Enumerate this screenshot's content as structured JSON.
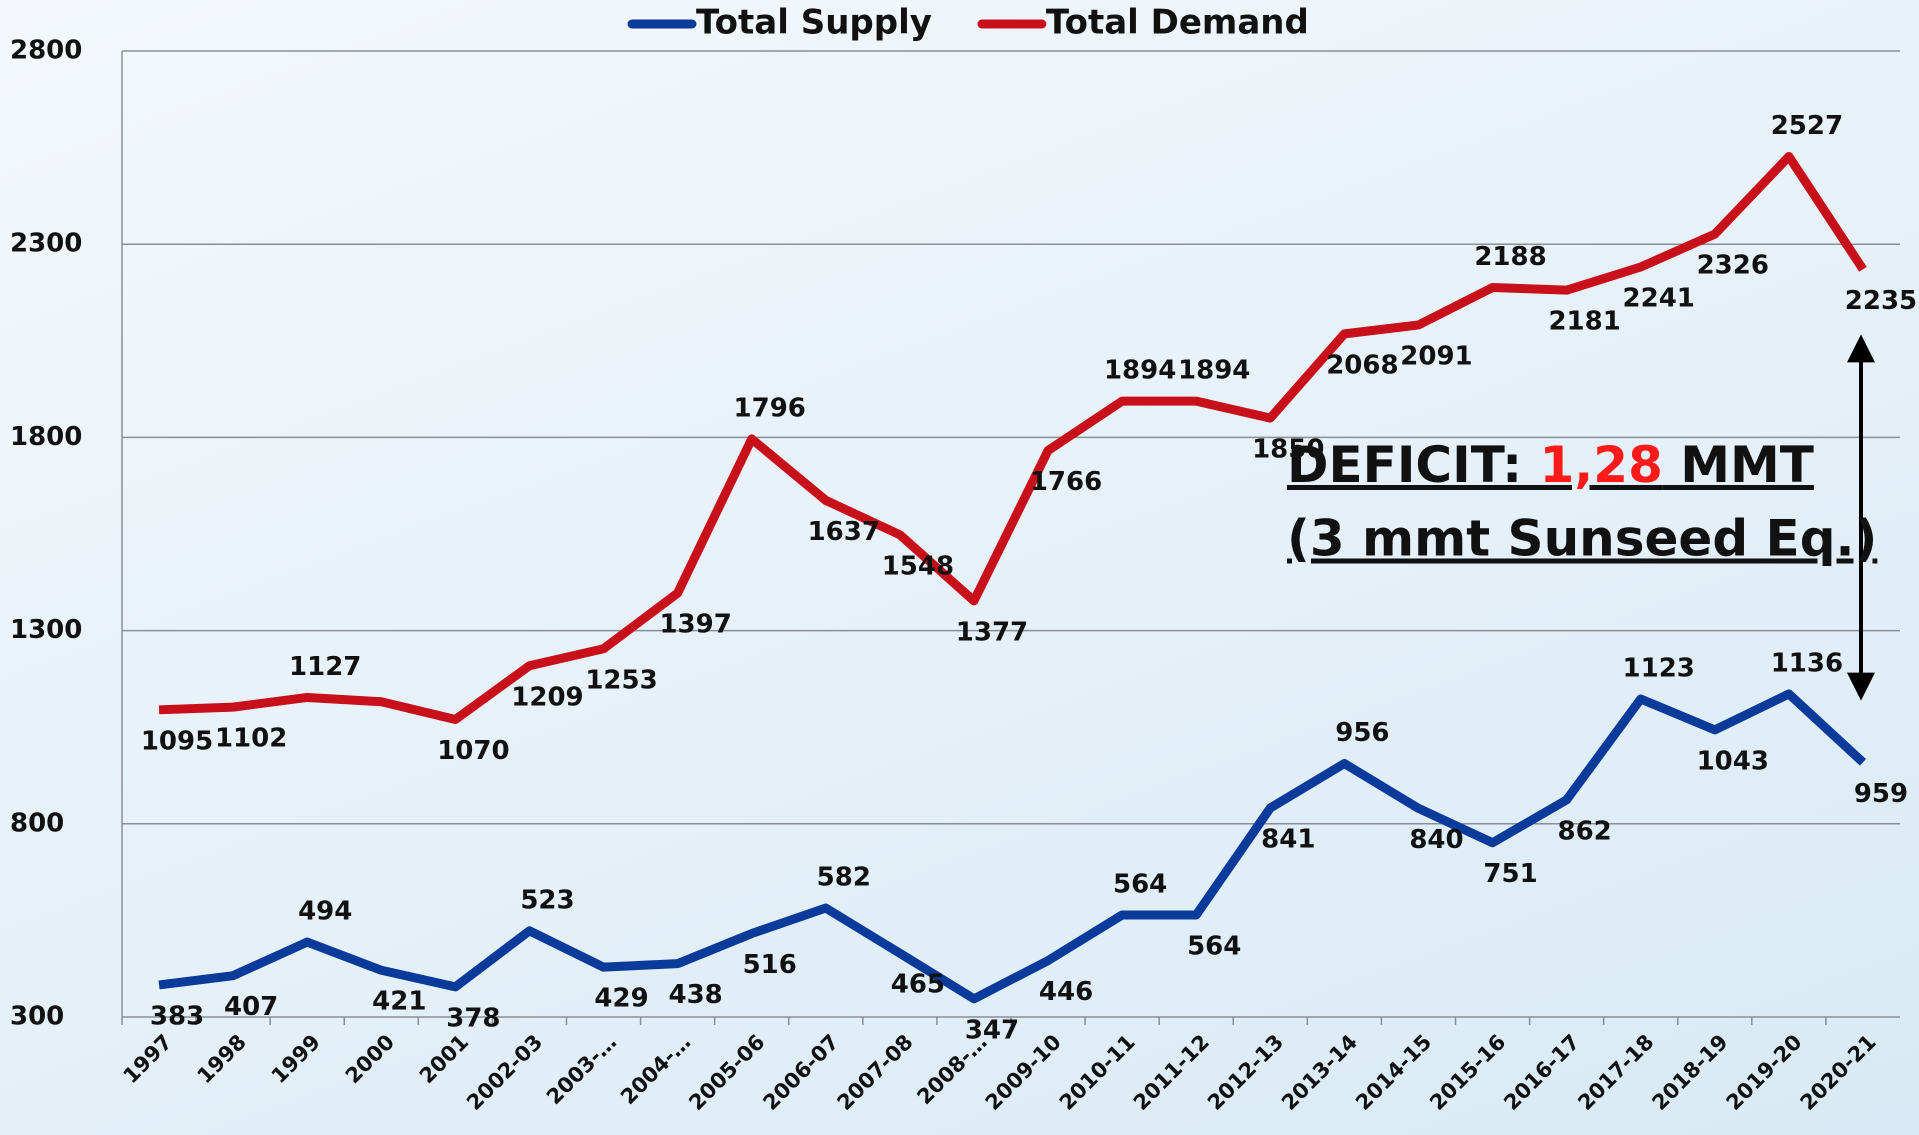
{
  "chart_data": {
    "type": "line",
    "categories": [
      "1997",
      "1998",
      "1999",
      "2000",
      "2001",
      "2002-03",
      "2003-…",
      "2004-…",
      "2005-06",
      "2006-07",
      "2007-08",
      "2008-…",
      "2009-10",
      "2010-11",
      "2011-12",
      "2012-13",
      "2013-14",
      "2014-15",
      "2015-16",
      "2016-17",
      "2017-18",
      "2018-19",
      "2019-20",
      "2020-21"
    ],
    "series": [
      {
        "name": "Total Supply",
        "color": "#0a3a9a",
        "values": [
          383,
          407,
          494,
          421,
          378,
          523,
          429,
          438,
          516,
          582,
          465,
          347,
          446,
          564,
          564,
          841,
          956,
          840,
          751,
          862,
          1123,
          1043,
          1136,
          959
        ]
      },
      {
        "name": "Total Demand",
        "color": "#c8101a",
        "values": [
          1095,
          1102,
          1127,
          1116,
          1070,
          1209,
          1253,
          1397,
          1796,
          1637,
          1548,
          1377,
          1766,
          1894,
          1894,
          1850,
          2068,
          2091,
          2188,
          2181,
          2241,
          2326,
          2527,
          2235
        ],
        "value_labels": [
          1095,
          1102,
          1127,
          null,
          1070,
          1209,
          1253,
          1397,
          1796,
          1637,
          1548,
          1377,
          1766,
          1894,
          1894,
          1850,
          2068,
          2091,
          2188,
          2181,
          2241,
          2326,
          2527,
          2235
        ]
      }
    ],
    "ylim": [
      300,
      2800
    ],
    "yticks": [
      300,
      800,
      1300,
      1800,
      2300,
      2800
    ],
    "grid": true,
    "legend": "top",
    "annotations": [
      {
        "prefix": "DEFICIT: ",
        "highlight": "1,28",
        "suffix": " MMT",
        "highlight_color": "#ff1a1a"
      },
      {
        "text": "(3 mmt Sunseed Eq.)"
      }
    ]
  }
}
